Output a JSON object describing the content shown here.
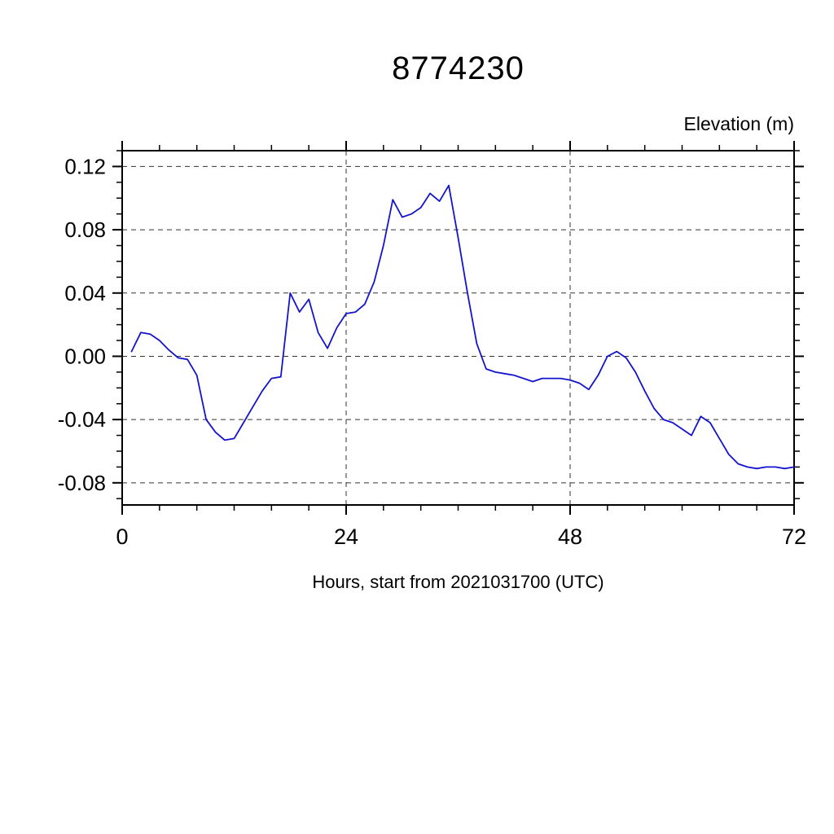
{
  "chart_data": {
    "type": "line",
    "title": "8774230",
    "ylabel_top": "Elevation (m)",
    "xlabel": "Hours, start from 2021031700 (UTC)",
    "xlim": [
      0,
      72
    ],
    "ylim": [
      -0.094,
      0.13
    ],
    "xticks": [
      0,
      24,
      48,
      72
    ],
    "xtick_labels": [
      "0",
      "24",
      "48",
      "72"
    ],
    "yticks": [
      -0.08,
      -0.04,
      0.0,
      0.04,
      0.08,
      0.12
    ],
    "ytick_labels": [
      "-0.08",
      "-0.04",
      "0.00",
      "0.04",
      "0.08",
      "0.12"
    ],
    "grid": true,
    "grid_x": [
      24,
      48
    ],
    "line_color": "#1414cc",
    "series": [
      {
        "name": "elevation",
        "x": [
          1,
          2,
          3,
          4,
          5,
          6,
          7,
          8,
          9,
          10,
          11,
          12,
          13,
          14,
          15,
          16,
          17,
          18,
          19,
          20,
          21,
          22,
          23,
          24,
          25,
          26,
          27,
          28,
          29,
          30,
          31,
          32,
          33,
          34,
          35,
          36,
          37,
          38,
          39,
          40,
          41,
          42,
          43,
          44,
          45,
          46,
          47,
          48,
          49,
          50,
          51,
          52,
          53,
          54,
          55,
          56,
          57,
          58,
          59,
          60,
          61,
          62,
          63,
          64,
          65,
          66,
          67,
          68,
          69,
          70,
          71,
          72
        ],
        "values": [
          0.003,
          0.015,
          0.014,
          0.01,
          0.004,
          -0.001,
          -0.002,
          -0.012,
          -0.04,
          -0.048,
          -0.053,
          -0.052,
          -0.042,
          -0.032,
          -0.022,
          -0.014,
          -0.013,
          0.04,
          0.028,
          0.036,
          0.015,
          0.005,
          0.018,
          0.027,
          0.028,
          0.033,
          0.047,
          0.07,
          0.099,
          0.088,
          0.09,
          0.094,
          0.103,
          0.098,
          0.108,
          0.075,
          0.04,
          0.008,
          -0.008,
          -0.01,
          -0.011,
          -0.012,
          -0.014,
          -0.016,
          -0.014,
          -0.014,
          -0.014,
          -0.015,
          -0.017,
          -0.021,
          -0.012,
          0.0,
          0.003,
          -0.001,
          -0.01,
          -0.022,
          -0.033,
          -0.04,
          -0.042,
          -0.046,
          -0.05,
          -0.038,
          -0.042,
          -0.052,
          -0.062,
          -0.068,
          -0.07,
          -0.071,
          -0.07,
          -0.07,
          -0.071,
          -0.07
        ]
      }
    ]
  }
}
